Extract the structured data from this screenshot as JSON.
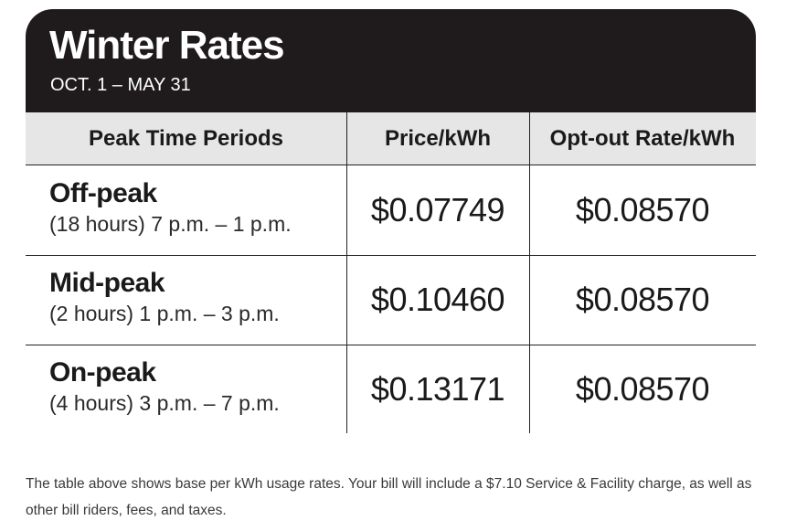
{
  "header": {
    "title": "Winter Rates",
    "subtitle": "OCT. 1 – MAY 31"
  },
  "table": {
    "columns": [
      "Peak Time Periods",
      "Price/kWh",
      "Opt-out Rate/kWh"
    ],
    "rows": [
      {
        "name": "Off-peak",
        "desc": "(18 hours) 7 p.m. – 1 p.m.",
        "price": "$0.07749",
        "optout": "$0.08570"
      },
      {
        "name": "Mid-peak",
        "desc": "(2 hours) 1 p.m. – 3 p.m.",
        "price": "$0.10460",
        "optout": "$0.08570"
      },
      {
        "name": "On-peak",
        "desc": "(4 hours) 3 p.m. – 7 p.m.",
        "price": "$0.13171",
        "optout": "$0.08570"
      }
    ]
  },
  "note": "The table above shows base per kWh usage rates. Your bill will include a $7.10 Service & Facility charge, as well as other bill riders, fees, and taxes.",
  "colors": {
    "header_bg": "#1f1b1c",
    "column_header_bg": "#e6e6e6",
    "text": "#1a1a1a"
  }
}
